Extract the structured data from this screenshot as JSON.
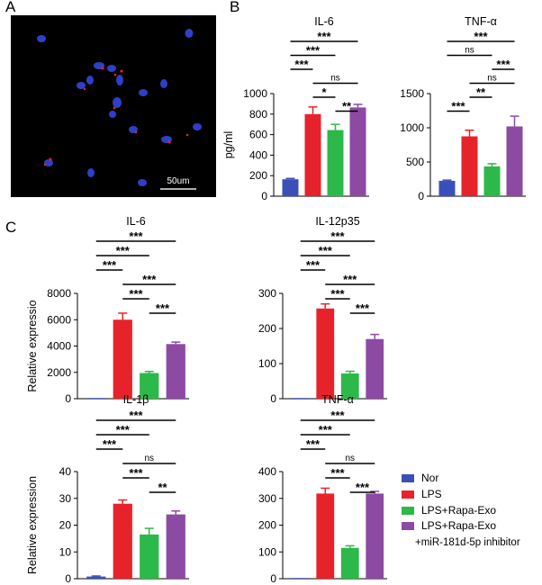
{
  "panels": {
    "a": "A",
    "b": "B",
    "c": "C"
  },
  "colors": {
    "Nor": "#3a50b8",
    "LPS": "#e6232a",
    "Exo": "#2db84a",
    "Inh": "#8c4aa3"
  },
  "micrograph": {
    "scale_label": "50um"
  },
  "legend": {
    "items": [
      {
        "label": "Nor",
        "key": "Nor"
      },
      {
        "label": "LPS",
        "key": "LPS"
      },
      {
        "label": "LPS+Rapa-Exo",
        "key": "Exo"
      },
      {
        "label": "LPS+Rapa-Exo",
        "key": "Inh"
      }
    ],
    "note": "+miR-181d-5p inhibitor"
  },
  "chart_data": [
    {
      "id": "b1",
      "type": "bar",
      "title": "IL-6",
      "ylabel": "pg/ml",
      "ylim": [
        0,
        1000
      ],
      "yticks": [
        "0",
        "200",
        "400",
        "600",
        "800",
        "1000"
      ],
      "categories": [
        "Nor",
        "LPS",
        "LPS+Rapa-Exo",
        "LPS+Rapa-Exo +miR-181d-5p inhibitor"
      ],
      "values": [
        165,
        800,
        645,
        865
      ],
      "errors": [
        8,
        70,
        55,
        30
      ],
      "sig": [
        {
          "a": 0,
          "b": 3,
          "label": "***"
        },
        {
          "a": 0,
          "b": 2,
          "label": "***"
        },
        {
          "a": 0,
          "b": 1,
          "label": "***"
        },
        {
          "a": 1,
          "b": 3,
          "label": "ns"
        },
        {
          "a": 1,
          "b": 2,
          "label": "*"
        },
        {
          "a": 2,
          "b": 3,
          "label": "**"
        }
      ]
    },
    {
      "id": "b2",
      "type": "bar",
      "title": "TNF-α",
      "ylabel": "",
      "ylim": [
        0,
        1500
      ],
      "yticks": [
        "0",
        "500",
        "1000",
        "1500"
      ],
      "categories": [
        "Nor",
        "LPS",
        "LPS+Rapa-Exo",
        "LPS+Rapa-Exo +miR-181d-5p inhibitor"
      ],
      "values": [
        225,
        875,
        435,
        1020
      ],
      "errors": [
        10,
        90,
        40,
        150
      ],
      "sig": [
        {
          "a": 0,
          "b": 3,
          "label": "***"
        },
        {
          "a": 0,
          "b": 2,
          "label": "ns"
        },
        {
          "a": 2,
          "b": 3,
          "label": "***"
        },
        {
          "a": 1,
          "b": 3,
          "label": "ns"
        },
        {
          "a": 1,
          "b": 2,
          "label": "**"
        },
        {
          "a": 0,
          "b": 1,
          "label": "***"
        }
      ]
    },
    {
      "id": "c1",
      "type": "bar",
      "title": "IL-6",
      "ylabel": "Relative expressio",
      "ylim": [
        0,
        8000
      ],
      "yticks": [
        "0",
        "2000",
        "4000",
        "6000",
        "8000"
      ],
      "categories": [
        "Nor",
        "LPS",
        "LPS+Rapa-Exo",
        "LPS+Rapa-Exo +miR-181d-5p inhibitor"
      ],
      "values": [
        0,
        6000,
        1950,
        4150
      ],
      "errors": [
        0,
        500,
        120,
        150
      ],
      "sig": [
        {
          "a": 0,
          "b": 3,
          "label": "***"
        },
        {
          "a": 0,
          "b": 2,
          "label": "***"
        },
        {
          "a": 0,
          "b": 1,
          "label": "***"
        },
        {
          "a": 1,
          "b": 3,
          "label": "***"
        },
        {
          "a": 1,
          "b": 2,
          "label": "***"
        },
        {
          "a": 2,
          "b": 3,
          "label": "***"
        }
      ]
    },
    {
      "id": "c2",
      "type": "bar",
      "title": "IL-12p35",
      "ylabel": "",
      "ylim": [
        0,
        300
      ],
      "yticks": [
        "0",
        "100",
        "200",
        "300"
      ],
      "categories": [
        "Nor",
        "LPS",
        "LPS+Rapa-Exo",
        "LPS+Rapa-Exo +miR-181d-5p inhibitor"
      ],
      "values": [
        0,
        257,
        72,
        170
      ],
      "errors": [
        0,
        13,
        6,
        13
      ],
      "sig": [
        {
          "a": 0,
          "b": 3,
          "label": "***"
        },
        {
          "a": 0,
          "b": 2,
          "label": "***"
        },
        {
          "a": 0,
          "b": 1,
          "label": "***"
        },
        {
          "a": 1,
          "b": 3,
          "label": "***"
        },
        {
          "a": 1,
          "b": 2,
          "label": "***"
        },
        {
          "a": 2,
          "b": 3,
          "label": "***"
        }
      ]
    },
    {
      "id": "c3",
      "type": "bar",
      "title": "IL-1β",
      "ylabel": "Relative expression",
      "ylim": [
        0,
        40
      ],
      "yticks": [
        "0",
        "10",
        "20",
        "30",
        "40"
      ],
      "categories": [
        "Nor",
        "LPS",
        "LPS+Rapa-Exo",
        "LPS+Rapa-Exo +miR-181d-5p inhibitor"
      ],
      "values": [
        0.8,
        28,
        16.5,
        24
      ],
      "errors": [
        0.2,
        1.4,
        2.3,
        1.3
      ],
      "sig": [
        {
          "a": 0,
          "b": 3,
          "label": "***"
        },
        {
          "a": 0,
          "b": 2,
          "label": "***"
        },
        {
          "a": 0,
          "b": 1,
          "label": "***"
        },
        {
          "a": 1,
          "b": 3,
          "label": "ns"
        },
        {
          "a": 1,
          "b": 2,
          "label": "***"
        },
        {
          "a": 2,
          "b": 3,
          "label": "**"
        }
      ]
    },
    {
      "id": "c4",
      "type": "bar",
      "title": "TNF-α",
      "ylabel": "",
      "ylim": [
        0,
        400
      ],
      "yticks": [
        "0",
        "100",
        "200",
        "300",
        "400"
      ],
      "categories": [
        "Nor",
        "LPS",
        "LPS+Rapa-Exo",
        "LPS+Rapa-Exo +miR-181d-5p inhibitor"
      ],
      "values": [
        0,
        318,
        115,
        318
      ],
      "errors": [
        0,
        20,
        8,
        8
      ],
      "sig": [
        {
          "a": 0,
          "b": 3,
          "label": "***"
        },
        {
          "a": 0,
          "b": 2,
          "label": "***"
        },
        {
          "a": 0,
          "b": 1,
          "label": "***"
        },
        {
          "a": 1,
          "b": 3,
          "label": "ns"
        },
        {
          "a": 1,
          "b": 2,
          "label": "***"
        },
        {
          "a": 2,
          "b": 3,
          "label": "***"
        }
      ]
    }
  ]
}
